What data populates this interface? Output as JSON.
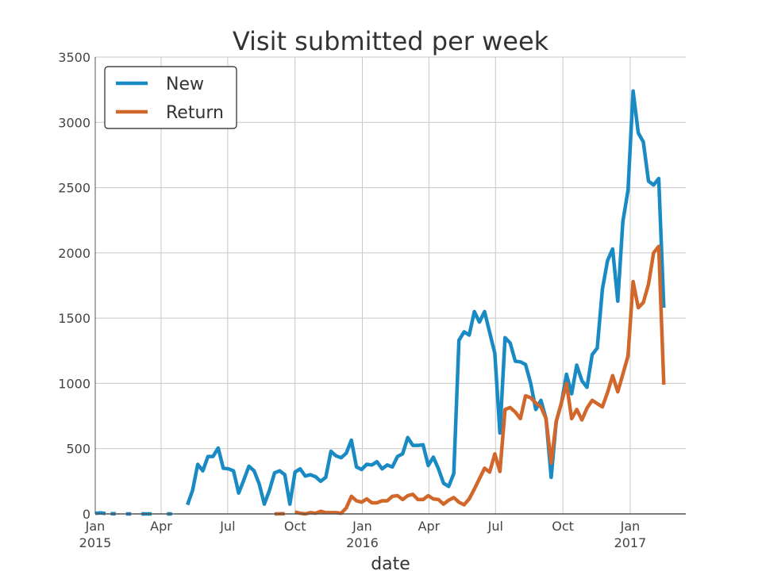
{
  "chart_data": {
    "type": "line",
    "title": "Visit submitted per week",
    "xlabel": "date",
    "ylabel": "",
    "ylim": [
      0,
      3500
    ],
    "yticks": [
      0,
      500,
      1000,
      1500,
      2000,
      2500,
      3000,
      3500
    ],
    "xlim": [
      "2015-01-01",
      "2017-03-18"
    ],
    "xticks": [
      {
        "date": "2015-01-01",
        "label": "Jan",
        "sublabel": "2015"
      },
      {
        "date": "2015-04-01",
        "label": "Apr",
        "sublabel": ""
      },
      {
        "date": "2015-07-01",
        "label": "Jul",
        "sublabel": ""
      },
      {
        "date": "2015-10-01",
        "label": "Oct",
        "sublabel": ""
      },
      {
        "date": "2016-01-01",
        "label": "Jan",
        "sublabel": "2016"
      },
      {
        "date": "2016-04-01",
        "label": "Apr",
        "sublabel": ""
      },
      {
        "date": "2016-07-01",
        "label": "Jul",
        "sublabel": ""
      },
      {
        "date": "2016-10-01",
        "label": "Oct",
        "sublabel": ""
      },
      {
        "date": "2017-01-01",
        "label": "Jan",
        "sublabel": "2017"
      }
    ],
    "grid": true,
    "legend": "top-left",
    "series": [
      {
        "name": "New",
        "color": "#1a8ac4",
        "segments": [
          [
            [
              "2015-01-01",
              5
            ],
            [
              "2015-01-08",
              8
            ],
            [
              "2015-01-15",
              3
            ]
          ],
          [
            [
              "2015-01-22",
              2
            ],
            [
              "2015-01-29",
              1
            ]
          ],
          [
            [
              "2015-02-12",
              0
            ],
            [
              "2015-02-19",
              0
            ]
          ],
          [
            [
              "2015-03-05",
              0
            ],
            [
              "2015-03-19",
              0
            ]
          ],
          [
            [
              "2015-04-09",
              0
            ],
            [
              "2015-04-16",
              0
            ]
          ],
          [
            [
              "2015-05-07",
              70
            ],
            [
              "2015-05-14",
              180
            ],
            [
              "2015-05-21",
              380
            ],
            [
              "2015-05-28",
              330
            ],
            [
              "2015-06-04",
              440
            ],
            [
              "2015-06-11",
              440
            ],
            [
              "2015-06-18",
              505
            ],
            [
              "2015-06-25",
              350
            ],
            [
              "2015-07-02",
              345
            ],
            [
              "2015-07-09",
              330
            ],
            [
              "2015-07-16",
              160
            ],
            [
              "2015-07-23",
              260
            ],
            [
              "2015-07-30",
              365
            ],
            [
              "2015-08-06",
              330
            ],
            [
              "2015-08-13",
              230
            ],
            [
              "2015-08-20",
              75
            ],
            [
              "2015-08-27",
              180
            ],
            [
              "2015-09-03",
              315
            ],
            [
              "2015-09-10",
              330
            ],
            [
              "2015-09-17",
              300
            ],
            [
              "2015-09-24",
              75
            ],
            [
              "2015-10-01",
              320
            ],
            [
              "2015-10-08",
              345
            ],
            [
              "2015-10-15",
              290
            ],
            [
              "2015-10-22",
              300
            ],
            [
              "2015-10-29",
              285
            ],
            [
              "2015-11-05",
              250
            ],
            [
              "2015-11-12",
              280
            ],
            [
              "2015-11-19",
              480
            ],
            [
              "2015-11-26",
              445
            ],
            [
              "2015-12-03",
              430
            ],
            [
              "2015-12-10",
              465
            ],
            [
              "2015-12-17",
              565
            ],
            [
              "2015-12-24",
              360
            ],
            [
              "2015-12-31",
              340
            ],
            [
              "2016-01-07",
              380
            ],
            [
              "2016-01-14",
              375
            ],
            [
              "2016-01-21",
              400
            ],
            [
              "2016-01-28",
              345
            ],
            [
              "2016-02-04",
              375
            ],
            [
              "2016-02-11",
              360
            ],
            [
              "2016-02-18",
              440
            ],
            [
              "2016-02-25",
              460
            ],
            [
              "2016-03-03",
              585
            ],
            [
              "2016-03-10",
              525
            ],
            [
              "2016-03-17",
              525
            ],
            [
              "2016-03-24",
              530
            ],
            [
              "2016-03-31",
              370
            ],
            [
              "2016-04-07",
              435
            ],
            [
              "2016-04-14",
              345
            ],
            [
              "2016-04-21",
              235
            ],
            [
              "2016-04-28",
              210
            ],
            [
              "2016-05-05",
              310
            ],
            [
              "2016-05-12",
              1330
            ],
            [
              "2016-05-19",
              1395
            ],
            [
              "2016-05-26",
              1370
            ],
            [
              "2016-06-02",
              1550
            ],
            [
              "2016-06-09",
              1470
            ],
            [
              "2016-06-16",
              1550
            ],
            [
              "2016-06-23",
              1390
            ],
            [
              "2016-06-30",
              1230
            ],
            [
              "2016-07-07",
              620
            ],
            [
              "2016-07-14",
              1350
            ],
            [
              "2016-07-21",
              1310
            ],
            [
              "2016-07-28",
              1170
            ],
            [
              "2016-08-04",
              1165
            ],
            [
              "2016-08-11",
              1145
            ],
            [
              "2016-08-18",
              1000
            ],
            [
              "2016-08-25",
              800
            ],
            [
              "2016-09-01",
              870
            ],
            [
              "2016-09-08",
              730
            ],
            [
              "2016-09-15",
              280
            ],
            [
              "2016-09-22",
              710
            ],
            [
              "2016-09-29",
              850
            ],
            [
              "2016-10-06",
              1070
            ],
            [
              "2016-10-13",
              920
            ],
            [
              "2016-10-20",
              1140
            ],
            [
              "2016-10-27",
              1020
            ],
            [
              "2016-11-03",
              970
            ],
            [
              "2016-11-10",
              1220
            ],
            [
              "2016-11-17",
              1270
            ],
            [
              "2016-11-24",
              1720
            ],
            [
              "2016-12-01",
              1940
            ],
            [
              "2016-12-08",
              2030
            ],
            [
              "2016-12-15",
              1630
            ],
            [
              "2016-12-22",
              2240
            ],
            [
              "2016-12-29",
              2480
            ],
            [
              "2017-01-05",
              3240
            ],
            [
              "2017-01-12",
              2920
            ],
            [
              "2017-01-19",
              2850
            ],
            [
              "2017-01-26",
              2550
            ],
            [
              "2017-02-02",
              2520
            ],
            [
              "2017-02-09",
              2570
            ],
            [
              "2017-02-16",
              1580
            ]
          ]
        ]
      },
      {
        "name": "Return",
        "color": "#d2672b",
        "segments": [
          [
            [
              "2015-09-03",
              0
            ],
            [
              "2015-09-17",
              2
            ]
          ],
          [
            [
              "2015-10-01",
              15
            ],
            [
              "2015-10-08",
              5
            ],
            [
              "2015-10-15",
              0
            ],
            [
              "2015-10-22",
              10
            ],
            [
              "2015-10-29",
              5
            ],
            [
              "2015-11-05",
              20
            ],
            [
              "2015-11-12",
              10
            ],
            [
              "2015-11-19",
              10
            ],
            [
              "2015-11-26",
              10
            ],
            [
              "2015-12-03",
              5
            ],
            [
              "2015-12-10",
              45
            ],
            [
              "2015-12-17",
              135
            ],
            [
              "2015-12-24",
              100
            ],
            [
              "2015-12-31",
              90
            ],
            [
              "2016-01-07",
              115
            ],
            [
              "2016-01-14",
              85
            ],
            [
              "2016-01-21",
              85
            ],
            [
              "2016-01-28",
              100
            ],
            [
              "2016-02-04",
              100
            ],
            [
              "2016-02-11",
              135
            ],
            [
              "2016-02-18",
              140
            ],
            [
              "2016-02-25",
              110
            ],
            [
              "2016-03-03",
              140
            ],
            [
              "2016-03-10",
              150
            ],
            [
              "2016-03-17",
              110
            ],
            [
              "2016-03-24",
              110
            ],
            [
              "2016-03-31",
              140
            ],
            [
              "2016-04-07",
              115
            ],
            [
              "2016-04-14",
              110
            ],
            [
              "2016-04-21",
              75
            ],
            [
              "2016-04-28",
              105
            ],
            [
              "2016-05-05",
              125
            ],
            [
              "2016-05-12",
              90
            ],
            [
              "2016-05-19",
              70
            ],
            [
              "2016-05-26",
              115
            ],
            [
              "2016-06-02",
              190
            ],
            [
              "2016-06-09",
              270
            ],
            [
              "2016-06-16",
              350
            ],
            [
              "2016-06-23",
              320
            ],
            [
              "2016-06-30",
              460
            ],
            [
              "2016-07-07",
              325
            ],
            [
              "2016-07-14",
              800
            ],
            [
              "2016-07-21",
              815
            ],
            [
              "2016-07-28",
              780
            ],
            [
              "2016-08-04",
              730
            ],
            [
              "2016-08-11",
              905
            ],
            [
              "2016-08-18",
              890
            ],
            [
              "2016-08-25",
              850
            ],
            [
              "2016-09-01",
              820
            ],
            [
              "2016-09-08",
              730
            ],
            [
              "2016-09-15",
              390
            ],
            [
              "2016-09-22",
              710
            ],
            [
              "2016-09-29",
              850
            ],
            [
              "2016-10-06",
              1000
            ],
            [
              "2016-10-13",
              730
            ],
            [
              "2016-10-20",
              800
            ],
            [
              "2016-10-27",
              720
            ],
            [
              "2016-11-03",
              810
            ],
            [
              "2016-11-10",
              870
            ],
            [
              "2016-11-17",
              845
            ],
            [
              "2016-11-24",
              820
            ],
            [
              "2016-12-01",
              930
            ],
            [
              "2016-12-08",
              1060
            ],
            [
              "2016-12-15",
              935
            ],
            [
              "2016-12-22",
              1070
            ],
            [
              "2016-12-29",
              1210
            ],
            [
              "2017-01-05",
              1780
            ],
            [
              "2017-01-12",
              1580
            ],
            [
              "2017-01-19",
              1620
            ],
            [
              "2017-01-26",
              1760
            ],
            [
              "2017-02-02",
              2000
            ],
            [
              "2017-02-09",
              2050
            ],
            [
              "2017-02-16",
              990
            ]
          ]
        ]
      }
    ]
  }
}
